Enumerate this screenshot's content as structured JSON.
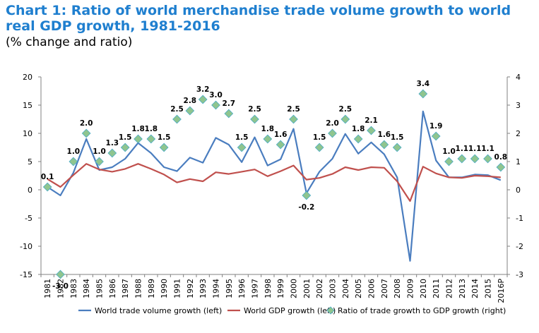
{
  "header": {
    "title": "Chart 1: Ratio of world merchandise trade volume growth to world real GDP growth, 1981-2016",
    "subtitle": "(% change and ratio)"
  },
  "chart_data": {
    "type": "line",
    "categories": [
      "1981",
      "1982",
      "1983",
      "1984",
      "1985",
      "1986",
      "1987",
      "1988",
      "1989",
      "1990",
      "1991",
      "1992",
      "1993",
      "1994",
      "1995",
      "1996",
      "1997",
      "1998",
      "1999",
      "2000",
      "2001",
      "2002",
      "2003",
      "2004",
      "2005",
      "2006",
      "2007",
      "2008",
      "2009",
      "2010",
      "2011",
      "2012",
      "2013",
      "2014",
      "2015",
      "2016P"
    ],
    "y_left_lim": [
      -15,
      20
    ],
    "y_left_ticks": [
      20,
      15,
      10,
      5,
      0,
      -5,
      -10,
      -15
    ],
    "y_right_lim": [
      -3,
      4
    ],
    "y_right_ticks": [
      4,
      3,
      2,
      1,
      0,
      -1,
      -2,
      -3
    ],
    "series": [
      {
        "name": "World trade volume growth (left)",
        "axis": "left",
        "kind": "line",
        "color": "#4a7dbf",
        "values": [
          0.5,
          -1.0,
          3.0,
          9.0,
          3.5,
          4.0,
          5.5,
          8.3,
          6.5,
          4.0,
          3.3,
          5.7,
          4.8,
          9.2,
          8.0,
          4.9,
          9.3,
          4.3,
          5.4,
          10.8,
          -0.6,
          3.2,
          5.5,
          9.9,
          6.4,
          8.4,
          6.3,
          2.2,
          -12.6,
          13.9,
          5.2,
          2.2,
          2.2,
          2.7,
          2.6,
          1.7
        ]
      },
      {
        "name": "World GDP growth (left)",
        "axis": "left",
        "kind": "line",
        "color": "#c0504d",
        "values": [
          1.9,
          0.5,
          2.6,
          4.6,
          3.6,
          3.2,
          3.7,
          4.6,
          3.7,
          2.7,
          1.3,
          1.9,
          1.5,
          3.1,
          2.8,
          3.2,
          3.6,
          2.4,
          3.3,
          4.3,
          1.8,
          2.1,
          2.8,
          4.0,
          3.5,
          4.0,
          3.9,
          1.5,
          -2.0,
          4.1,
          2.9,
          2.2,
          2.1,
          2.5,
          2.4,
          2.2
        ]
      },
      {
        "name": "Ratio of trade growth to GDP growth (right)",
        "axis": "right",
        "kind": "scatter",
        "color": "#8fc58f",
        "edge_color": "#4bacc6",
        "values": [
          0.1,
          -3.0,
          1.0,
          2.0,
          1.0,
          1.3,
          1.5,
          1.8,
          1.8,
          1.5,
          2.5,
          2.8,
          3.2,
          3.0,
          2.7,
          1.5,
          2.5,
          1.8,
          1.6,
          2.5,
          -0.2,
          1.5,
          2.0,
          2.5,
          1.8,
          2.1,
          1.6,
          1.5,
          null,
          3.4,
          1.9,
          1.0,
          1.1,
          1.1,
          1.1,
          0.8
        ],
        "labels": [
          "0.1",
          "-3.0",
          "1.0",
          "2.0",
          "1.0",
          "1.3",
          "1.5",
          "1.8",
          "1.8",
          "1.5",
          "2.5",
          "2.8",
          "3.2",
          "3.0",
          "2.7",
          "1.5",
          "2.5",
          "1.8",
          "1.6",
          "2.5",
          "-0.2",
          "1.5",
          "2.0",
          "2.5",
          "1.8",
          "2.1",
          "1.6",
          "1.5",
          "",
          "3.4",
          "1.9",
          "1.0",
          "1.1",
          "1.1",
          "1.1",
          "0.8"
        ]
      }
    ],
    "legend_position": "bottom",
    "grid": false
  }
}
